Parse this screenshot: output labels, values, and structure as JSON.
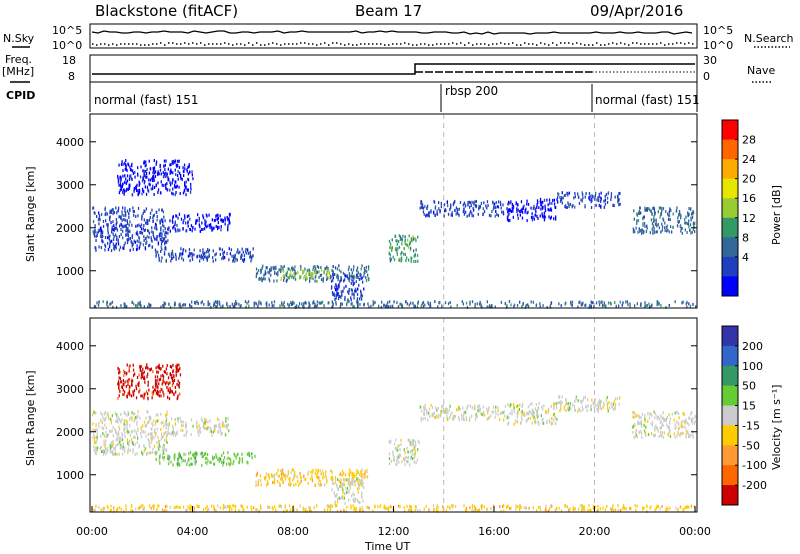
{
  "header": {
    "station": "Blackstone (fitACF)",
    "beam": "Beam 17",
    "date": "09/Apr/2016"
  },
  "top_panels": {
    "nsky_label": "N.Sky",
    "nsearch_label": "N.Search",
    "noise_ticks": [
      "10^5",
      "10^0"
    ],
    "freq_label": "Freq.",
    "freq_unit": "[MHz]",
    "freq_ticks": [
      "18",
      "8"
    ],
    "nave_label": "Nave",
    "nave_ticks": [
      "30",
      "0"
    ],
    "cpid_label": "CPID",
    "modes": [
      {
        "name": "normal (fast) 151",
        "start_hour": 0
      },
      {
        "name": "rbsp 200",
        "start_hour": 14
      },
      {
        "name": "normal (fast) 151",
        "start_hour": 20
      }
    ]
  },
  "chart_data": [
    {
      "type": "heatmap",
      "title": "",
      "xlabel": "Time UT",
      "ylabel": "Slant Range [km]",
      "xlim_hours": [
        0,
        24
      ],
      "ylim": [
        180,
        4600
      ],
      "yticks": [
        "1000",
        "2000",
        "3000",
        "4000"
      ],
      "xticks": [
        "00:00",
        "04:00",
        "08:00",
        "12:00",
        "16:00",
        "20:00",
        "00:00"
      ],
      "colorbar": {
        "label": "Power [dB]",
        "ticks": [
          "28",
          "24",
          "20",
          "16",
          "12",
          "8",
          "4"
        ],
        "colors": [
          "#ff0000",
          "#ff6600",
          "#ffaa00",
          "#e6e600",
          "#99cc33",
          "#339966",
          "#336699",
          "#1f3fbf",
          "#0000ff"
        ]
      },
      "dashed_lines_hours": [
        14,
        20
      ],
      "regions": [
        {
          "t0": 0.0,
          "t1": 3.0,
          "r0": 1500,
          "r1": 2500,
          "level": 1
        },
        {
          "t0": 1.0,
          "t1": 4.0,
          "r0": 2800,
          "r1": 3600,
          "level": 0
        },
        {
          "t0": 3.0,
          "t1": 5.5,
          "r0": 1950,
          "r1": 2350,
          "level": 0
        },
        {
          "t0": 2.5,
          "t1": 6.5,
          "r0": 1250,
          "r1": 1550,
          "level": 1
        },
        {
          "t0": 6.5,
          "t1": 11.0,
          "r0": 780,
          "r1": 1150,
          "level": 2
        },
        {
          "t0": 7.5,
          "t1": 9.5,
          "r0": 850,
          "r1": 1050,
          "level": 4
        },
        {
          "t0": 9.5,
          "t1": 10.8,
          "r0": 350,
          "r1": 950,
          "level": 1
        },
        {
          "t0": 11.8,
          "t1": 13.0,
          "r0": 1250,
          "r1": 1850,
          "level": 3
        },
        {
          "t0": 13.0,
          "t1": 16.5,
          "r0": 2300,
          "r1": 2650,
          "level": 1
        },
        {
          "t0": 16.5,
          "t1": 18.5,
          "r0": 2200,
          "r1": 2700,
          "level": 0
        },
        {
          "t0": 18.5,
          "t1": 21.0,
          "r0": 2500,
          "r1": 2850,
          "level": 1
        },
        {
          "t0": 21.5,
          "t1": 24.0,
          "r0": 1900,
          "r1": 2500,
          "level": 2
        },
        {
          "t0": 0.0,
          "t1": 24.0,
          "r0": 180,
          "r1": 320,
          "level": 2
        }
      ]
    },
    {
      "type": "heatmap",
      "title": "",
      "xlabel": "Time UT",
      "ylabel": "Slant Range [km]",
      "xlim_hours": [
        0,
        24
      ],
      "ylim": [
        180,
        4600
      ],
      "yticks": [
        "1000",
        "2000",
        "3000",
        "4000"
      ],
      "xticks": [
        "00:00",
        "04:00",
        "08:00",
        "12:00",
        "16:00",
        "20:00",
        "00:00"
      ],
      "colorbar": {
        "label": "Velocity [m s⁻¹]",
        "ticks": [
          "200",
          "100",
          "50",
          "15",
          "-15",
          "-50",
          "-100",
          "-200"
        ],
        "colors": [
          "#3333aa",
          "#3366cc",
          "#339966",
          "#66cc33",
          "#cccccc",
          "#ffcc00",
          "#ff9933",
          "#ff6600",
          "#cc0000"
        ]
      },
      "dashed_lines_hours": [
        14,
        20
      ],
      "regions": [
        {
          "t0": 0.0,
          "t1": 3.0,
          "r0": 1500,
          "r1": 2500,
          "level": 4
        },
        {
          "t0": 1.0,
          "t1": 3.5,
          "r0": 2800,
          "r1": 3600,
          "level": 8
        },
        {
          "t0": 3.0,
          "t1": 5.5,
          "r0": 1950,
          "r1": 2350,
          "level": 4
        },
        {
          "t0": 2.5,
          "t1": 6.5,
          "r0": 1250,
          "r1": 1550,
          "level": 3
        },
        {
          "t0": 6.5,
          "t1": 11.0,
          "r0": 780,
          "r1": 1150,
          "level": 5
        },
        {
          "t0": 9.5,
          "t1": 10.8,
          "r0": 350,
          "r1": 950,
          "level": 4
        },
        {
          "t0": 11.8,
          "t1": 13.0,
          "r0": 1250,
          "r1": 1850,
          "level": 4
        },
        {
          "t0": 13.0,
          "t1": 16.5,
          "r0": 2300,
          "r1": 2650,
          "level": 4
        },
        {
          "t0": 16.5,
          "t1": 18.5,
          "r0": 2200,
          "r1": 2700,
          "level": 4
        },
        {
          "t0": 18.5,
          "t1": 21.0,
          "r0": 2500,
          "r1": 2850,
          "level": 4
        },
        {
          "t0": 21.5,
          "t1": 24.0,
          "r0": 1900,
          "r1": 2500,
          "level": 4
        },
        {
          "t0": 0.0,
          "t1": 24.0,
          "r0": 180,
          "r1": 320,
          "level": 5
        }
      ]
    }
  ]
}
